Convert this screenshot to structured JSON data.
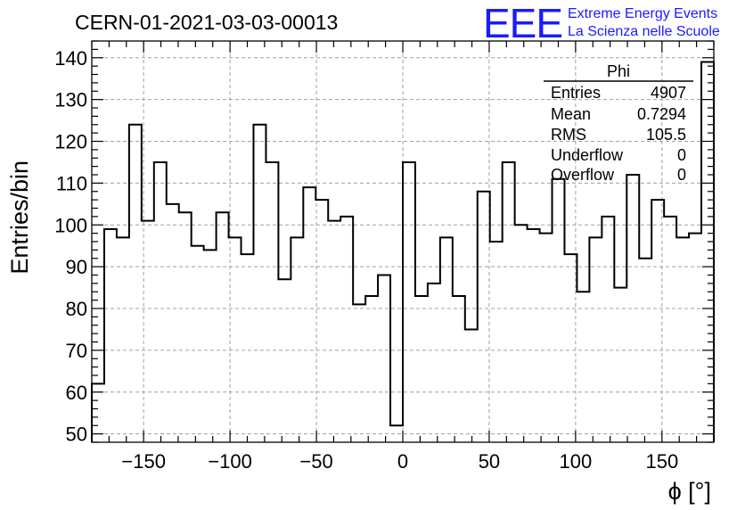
{
  "chart_data": {
    "type": "bar",
    "title": "CERN-01-2021-03-03-00013",
    "xlabel": "ϕ [°]",
    "ylabel": "Entries/bin",
    "xlim": [
      -180,
      180
    ],
    "ylim": [
      48,
      144
    ],
    "x_ticks": [
      -150,
      -100,
      -50,
      0,
      50,
      100,
      150
    ],
    "y_ticks": [
      50,
      60,
      70,
      80,
      90,
      100,
      110,
      120,
      130,
      140
    ],
    "grid": true,
    "bin_edges_start": -180,
    "bin_width": 7.2,
    "values": [
      62,
      99,
      97,
      124,
      101,
      115,
      105,
      103,
      95,
      94,
      103,
      97,
      93,
      124,
      115,
      87,
      97,
      109,
      106,
      101,
      102,
      81,
      83,
      88,
      52,
      115,
      83,
      86,
      97,
      83,
      75,
      108,
      96,
      115,
      100,
      99,
      98,
      111,
      93,
      84,
      97,
      102,
      85,
      112,
      92,
      106,
      102,
      97,
      98,
      139
    ]
  },
  "stats_box": {
    "name": "Phi",
    "rows": [
      {
        "label": "Entries",
        "value": "4907"
      },
      {
        "label": "Mean",
        "value": "0.7294"
      },
      {
        "label": "RMS",
        "value": "105.5"
      },
      {
        "label": "Underflow",
        "value": "0"
      },
      {
        "label": "Overflow",
        "value": "0"
      }
    ]
  },
  "logo": {
    "mark": "EEE",
    "line1": "Extreme Energy Events",
    "line2": "La Scienza nelle Scuole",
    "color": "#1a1aff"
  }
}
